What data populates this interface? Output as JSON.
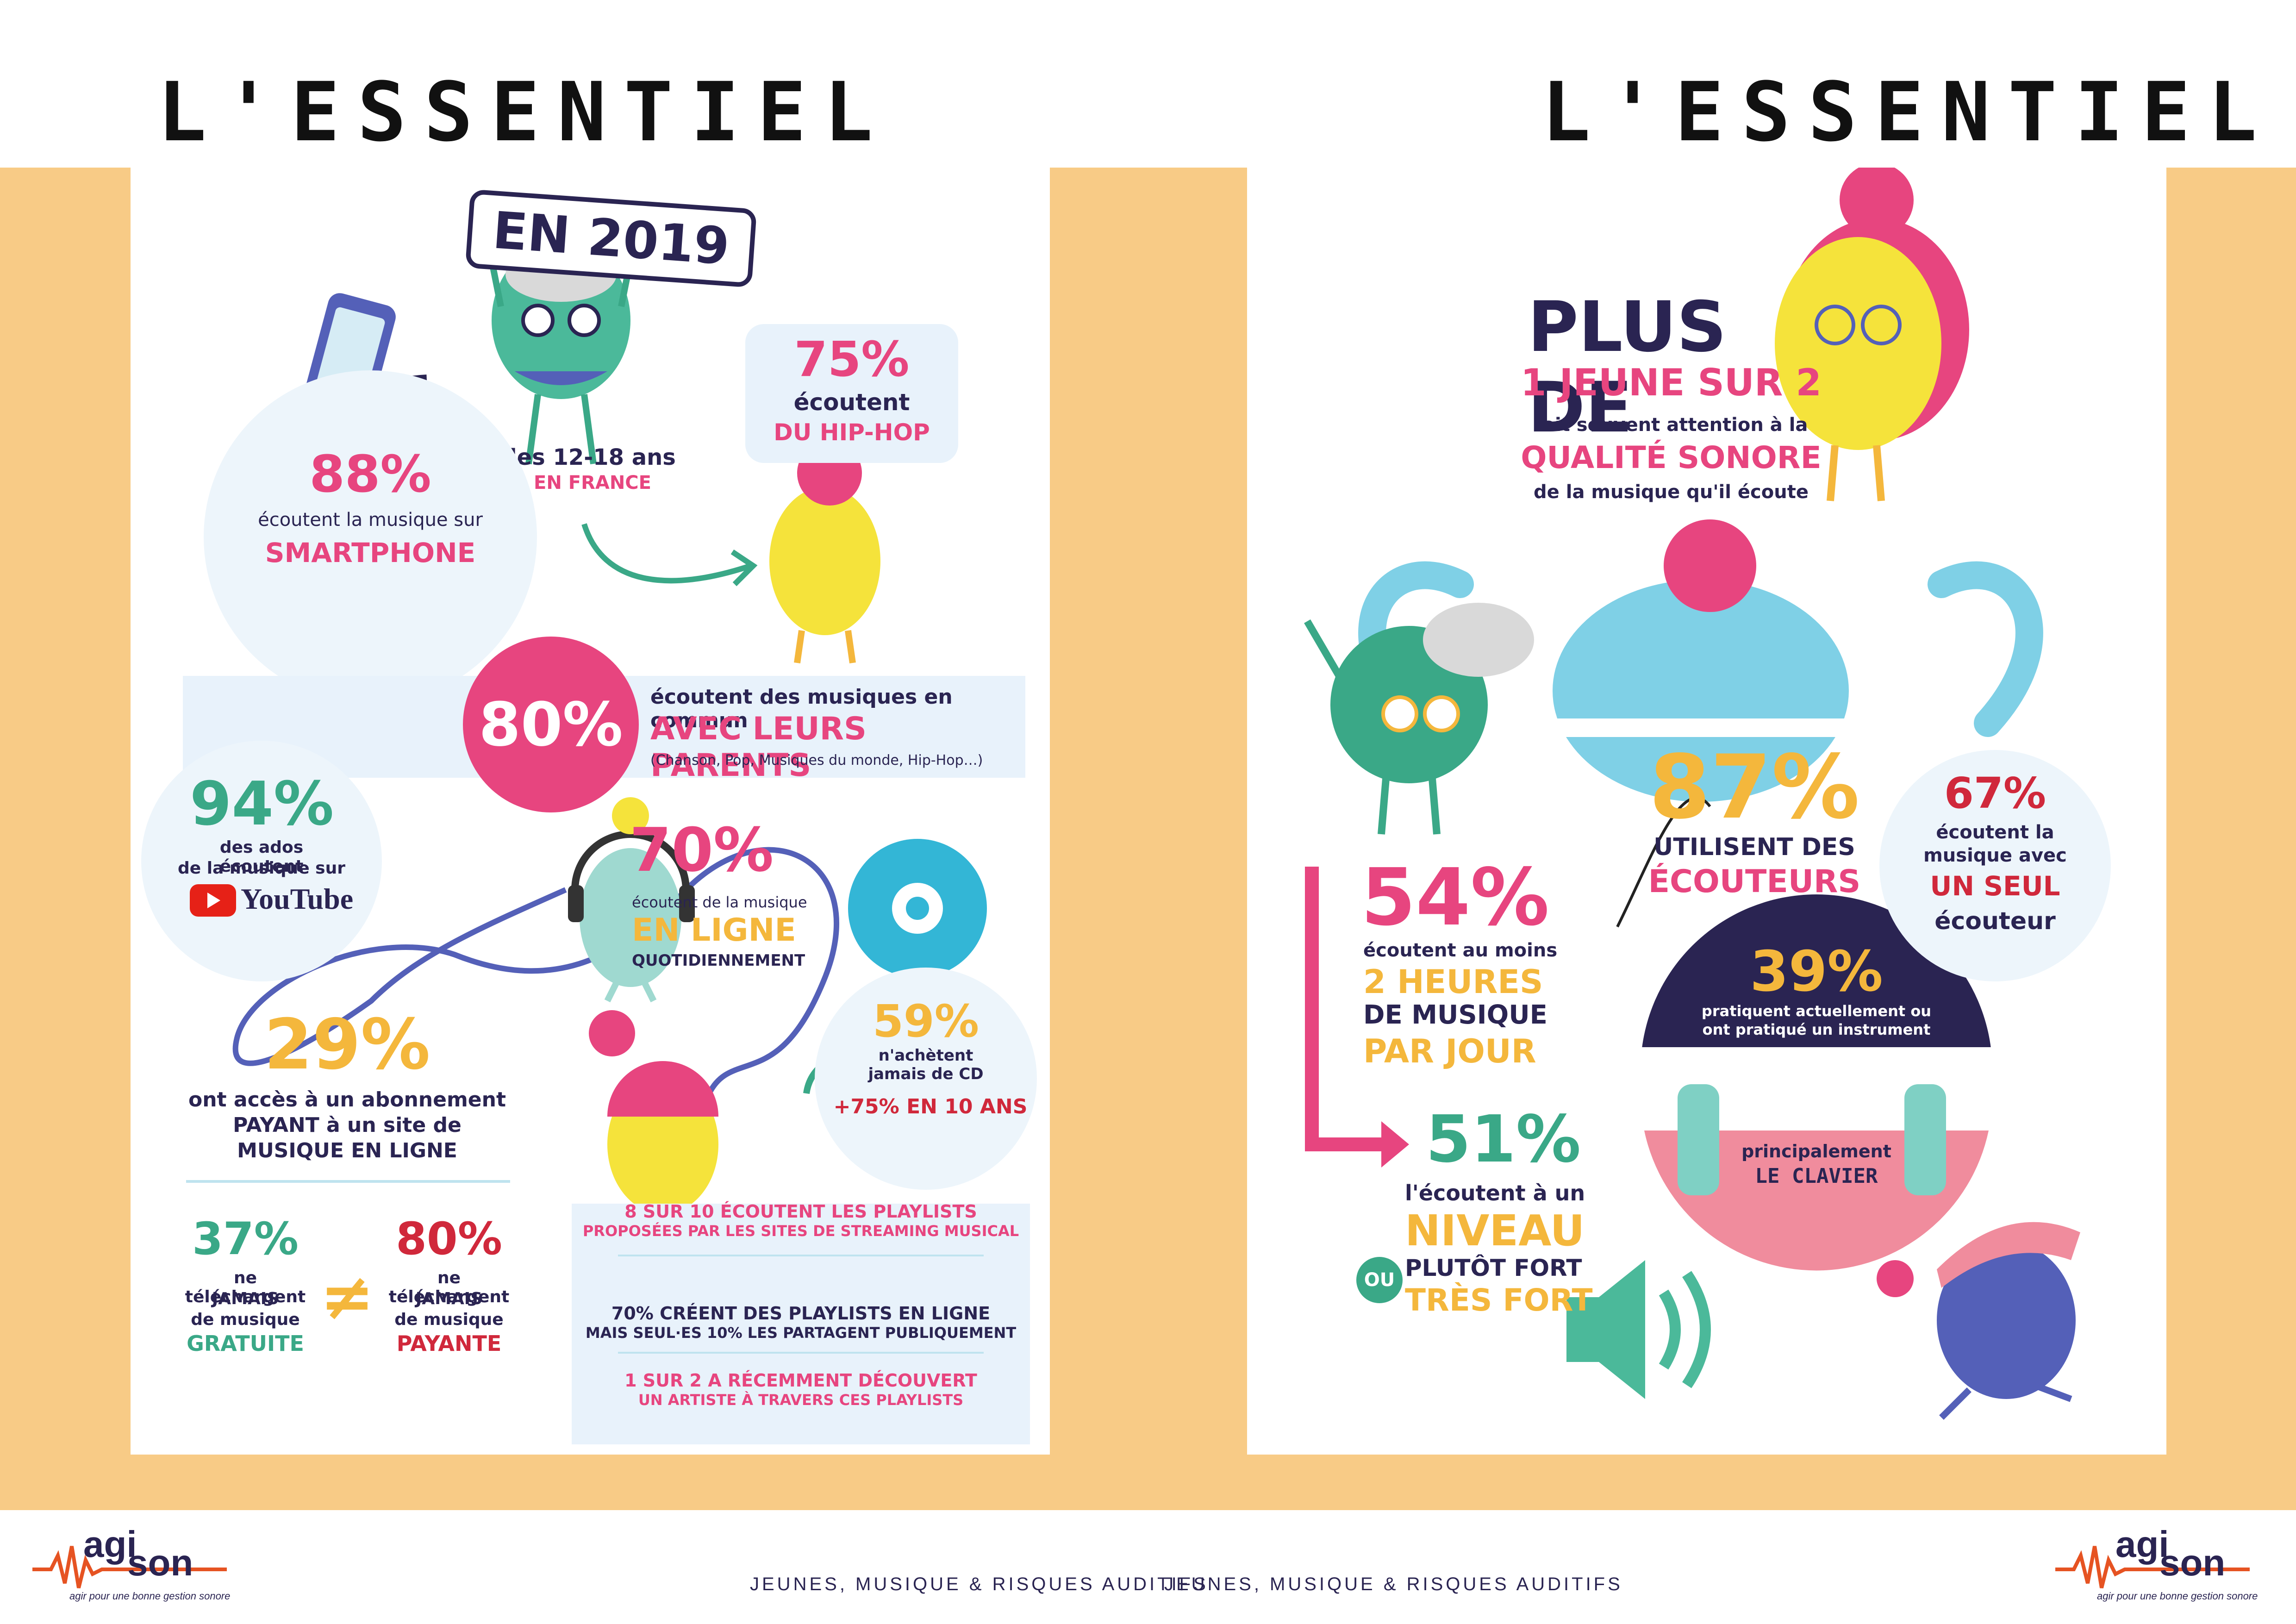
{
  "left": {
    "title": "L'ESSENTIEL",
    "year_sign": "EN 2019",
    "age_label": "les 12-18 ans",
    "age_sub": "EN FRANCE",
    "smartphone": {
      "pct": "88%",
      "text": "écoutent la musique sur",
      "em": "SMARTPHONE"
    },
    "hiphop": {
      "pct": "75%",
      "text": "écoutent",
      "em": "DU HIP-HOP"
    },
    "parents": {
      "pct": "80%",
      "text": "écoutent des musiques en commun",
      "em": "AVEC LEURS PARENTS",
      "note": "(Chanson, Pop, Musiques du monde, Hip-Hop…)"
    },
    "youtube": {
      "pct": "94%",
      "line1": "des ados écoutent",
      "line2": "de la musique sur",
      "brand": "YouTube"
    },
    "online": {
      "pct": "70%",
      "text": "écoutent de la musique",
      "em": "EN LIGNE",
      "sub": "QUOTIDIENNEMENT"
    },
    "cd": {
      "pct": "59%",
      "line1": "n'achètent",
      "line2": "jamais de CD",
      "trend": "+75% EN 10 ANS"
    },
    "subscription": {
      "pct": "29%",
      "line1": "ont accès à un abonnement",
      "line2": "PAYANT à un site de",
      "line3": "MUSIQUE EN LIGNE"
    },
    "free": {
      "pct": "37%",
      "line1": "ne téléchargent",
      "line2": "JAMAIS",
      "line3": "de musique",
      "em": "GRATUITE"
    },
    "neq": "≠",
    "paid": {
      "pct": "80%",
      "line1": "ne téléchargent",
      "line2": "JAMAIS",
      "line3": "de musique",
      "em": "PAYANTE"
    },
    "playlists": {
      "a1": "8 SUR 10 ÉCOUTENT LES PLAYLISTS",
      "a2": "PROPOSÉES PAR LES SITES DE STREAMING MUSICAL",
      "b1": "70% CRÉENT DES PLAYLISTS EN LIGNE",
      "b2": "MAIS SEUL·ES 10% LES PARTAGENT PUBLIQUEMENT",
      "c1": "1 SUR 2 A RÉCEMMENT DÉCOUVERT",
      "c2": "UN ARTISTE À TRAVERS CES PLAYLISTS"
    }
  },
  "right": {
    "title": "L'ESSENTIEL",
    "quality": {
      "big1": "PLUS DE",
      "big2": "1 JEUNE SUR 2",
      "line1": "fait souvent attention à la",
      "em": "QUALITÉ SONORE",
      "line2": "de la musique qu'il écoute"
    },
    "earphones": {
      "pct": "87%",
      "line1": "UTILISENT DES",
      "em": "ÉCOUTEURS"
    },
    "one_ear": {
      "pct": "67%",
      "line1": "écoutent la",
      "line2": "musique avec",
      "em": "UN SEUL",
      "line3": "écouteur"
    },
    "hours": {
      "pct": "54%",
      "line1": "écoutent au moins",
      "em1": "2 HEURES",
      "line2": "DE MUSIQUE",
      "em2": "PAR JOUR"
    },
    "instrument": {
      "pct": "39%",
      "line1": "pratiquent actuellement ou",
      "line2": "ont pratiqué un instrument",
      "sub1": "principalement",
      "sub2": "LE CLAVIER"
    },
    "loud": {
      "pct": "51%",
      "line1": "l'écoutent à un",
      "em": "NIVEAU",
      "line2": "PLUTÔT FORT",
      "ou": "OU",
      "em2": "TRÈS FORT"
    }
  },
  "footer": {
    "left_text": "JEUNES, MUSIQUE & RISQUES AUDITIFS",
    "right_text": "JEUNES, MUSIQUE & RISQUES AUDITIFS",
    "logo_a": "agi",
    "logo_b": "son",
    "tagline": "agir pour une bonne gestion sonore"
  },
  "colors": {
    "pink": "#e7457f",
    "navy": "#2a2452",
    "yellow": "#f4b73c",
    "green": "#3aa887",
    "red": "#d0283b",
    "band": "#f8cb86",
    "lightblue": "#e8f2fb"
  }
}
